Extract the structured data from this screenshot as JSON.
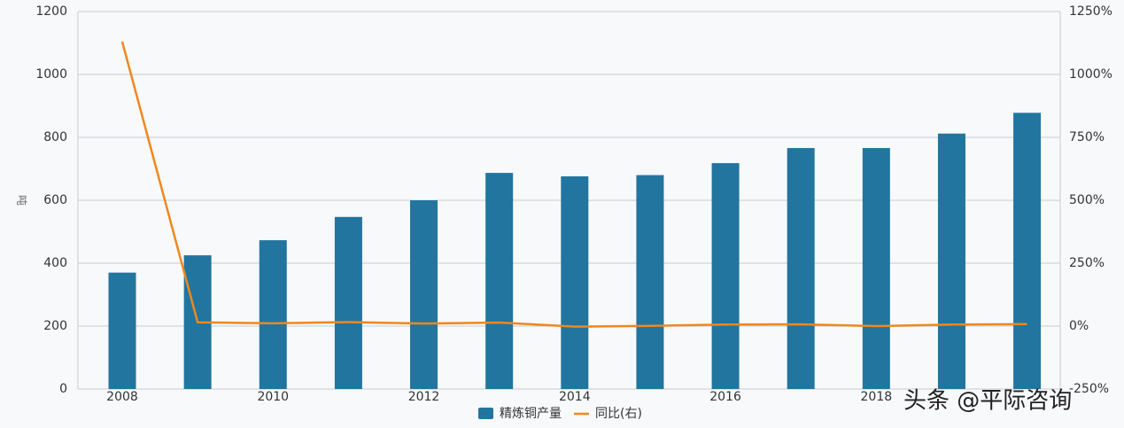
{
  "chart_data": {
    "type": "bar-line",
    "y_label": "吨",
    "categories": [
      "2008",
      null,
      "2010",
      null,
      "2012",
      null,
      "2014",
      null,
      "2016",
      null,
      "2018",
      null,
      null
    ],
    "series": [
      {
        "name": "精炼铜产量",
        "type": "bar",
        "color": "#21759f",
        "values": [
          370,
          425,
          473,
          547,
          600,
          687,
          676,
          680,
          718,
          766,
          766,
          812,
          878
        ]
      },
      {
        "name": "同比(右)",
        "type": "line",
        "axis": "y2",
        "color": "#f0871e",
        "values": [
          1130,
          15,
          11,
          16,
          10,
          14,
          -2,
          1,
          6,
          7,
          0,
          6,
          8
        ]
      }
    ],
    "ylim": [
      0,
      1200
    ],
    "yticks": [
      0,
      200,
      400,
      600,
      800,
      1000,
      1200
    ],
    "y2lim": [
      -250,
      1250
    ],
    "y2ticks": [
      {
        "value": -250,
        "label": "-250%"
      },
      {
        "value": 0,
        "label": "0%"
      },
      {
        "value": 250,
        "label": "250%"
      },
      {
        "value": 500,
        "label": "500%"
      },
      {
        "value": 750,
        "label": "750%"
      },
      {
        "value": 1000,
        "label": "1000%"
      },
      {
        "value": 1250,
        "label": "1250%"
      }
    ],
    "grid": true,
    "legend": "bottom",
    "watermark": "头条 @平际咨询"
  }
}
